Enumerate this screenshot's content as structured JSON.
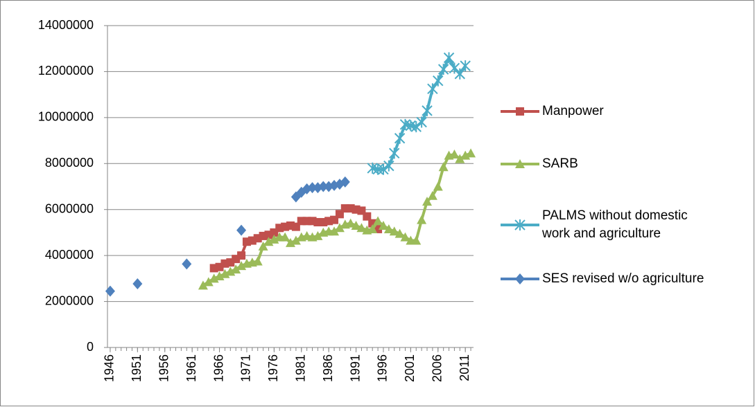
{
  "chart_data": {
    "type": "line",
    "x": [
      1946,
      1947,
      1948,
      1949,
      1950,
      1951,
      1952,
      1953,
      1954,
      1955,
      1956,
      1957,
      1958,
      1959,
      1960,
      1961,
      1962,
      1963,
      1964,
      1965,
      1966,
      1967,
      1968,
      1969,
      1970,
      1971,
      1972,
      1973,
      1974,
      1975,
      1976,
      1977,
      1978,
      1979,
      1980,
      1981,
      1982,
      1983,
      1984,
      1985,
      1986,
      1987,
      1988,
      1989,
      1990,
      1991,
      1992,
      1993,
      1994,
      1995,
      1996,
      1997,
      1998,
      1999,
      2000,
      2001,
      2002,
      2003,
      2004,
      2005,
      2006,
      2007,
      2008,
      2009,
      2010,
      2011,
      2012
    ],
    "xlim": [
      1945.5,
      2012.5
    ],
    "xticks": [
      1946,
      1951,
      1956,
      1961,
      1966,
      1971,
      1976,
      1981,
      1986,
      1991,
      1996,
      2001,
      2006,
      2011
    ],
    "ylim": [
      0,
      14000000
    ],
    "yticks": [
      0,
      2000000,
      4000000,
      6000000,
      8000000,
      10000000,
      12000000,
      14000000
    ],
    "grid": true,
    "series": [
      {
        "name": "Manpower",
        "color": "#c0504d",
        "marker": "square",
        "values": [
          null,
          null,
          null,
          null,
          null,
          null,
          null,
          null,
          null,
          null,
          null,
          null,
          null,
          null,
          null,
          null,
          null,
          null,
          null,
          3450000,
          3500000,
          3650000,
          3700000,
          3850000,
          4000000,
          4600000,
          4650000,
          4750000,
          4850000,
          4900000,
          5000000,
          5200000,
          5250000,
          5300000,
          5250000,
          5500000,
          5500000,
          5500000,
          5450000,
          5450000,
          5500000,
          5550000,
          5800000,
          6050000,
          6050000,
          6000000,
          5950000,
          5700000,
          5400000,
          5150000,
          null,
          null,
          null,
          null,
          null,
          null,
          null,
          null,
          null,
          null,
          null,
          null,
          null,
          null,
          null,
          null,
          null
        ]
      },
      {
        "name": "SARB",
        "color": "#9bbb59",
        "marker": "triangle",
        "values": [
          null,
          null,
          null,
          null,
          null,
          null,
          null,
          null,
          null,
          null,
          null,
          null,
          null,
          null,
          null,
          null,
          null,
          2700000,
          2850000,
          3000000,
          3100000,
          3200000,
          3300000,
          3400000,
          3550000,
          3650000,
          3700000,
          3750000,
          4400000,
          4600000,
          4700000,
          4800000,
          4800000,
          4550000,
          4650000,
          4800000,
          4850000,
          4800000,
          4850000,
          5000000,
          5050000,
          5050000,
          5200000,
          5350000,
          5400000,
          5300000,
          5200000,
          5100000,
          5150000,
          5500000,
          5300000,
          5150000,
          5050000,
          4950000,
          4800000,
          4650000,
          4650000,
          5550000,
          6350000,
          6600000,
          7000000,
          7850000,
          8350000,
          8400000,
          8200000,
          8350000,
          8450000
        ]
      },
      {
        "name": "PALMS without domestic work and agriculture",
        "color": "#4bacc6",
        "marker": "star",
        "values": [
          null,
          null,
          null,
          null,
          null,
          null,
          null,
          null,
          null,
          null,
          null,
          null,
          null,
          null,
          null,
          null,
          null,
          null,
          null,
          null,
          null,
          null,
          null,
          null,
          null,
          null,
          null,
          null,
          null,
          null,
          null,
          null,
          null,
          null,
          null,
          null,
          null,
          null,
          null,
          null,
          null,
          null,
          null,
          null,
          null,
          null,
          null,
          null,
          7800000,
          7750000,
          7750000,
          7900000,
          8450000,
          9100000,
          9700000,
          9650000,
          9600000,
          9800000,
          10300000,
          11250000,
          11600000,
          12100000,
          12600000,
          12150000,
          11900000,
          12250000,
          null
        ]
      },
      {
        "name": "SES revised w/o agriculture",
        "color": "#4f81bd",
        "marker": "diamond",
        "values": [
          2450000,
          null,
          null,
          null,
          null,
          2770000,
          null,
          null,
          null,
          null,
          null,
          null,
          null,
          null,
          3630000,
          null,
          null,
          null,
          null,
          null,
          null,
          null,
          null,
          null,
          5100000,
          null,
          null,
          null,
          null,
          null,
          null,
          null,
          null,
          null,
          6550000,
          6750000,
          6900000,
          6950000,
          6950000,
          7000000,
          7000000,
          7050000,
          7100000,
          7200000,
          null,
          null,
          null,
          null,
          null,
          null,
          null,
          null,
          null,
          null,
          null,
          null,
          null,
          null,
          null,
          null,
          null,
          null,
          null,
          null,
          null,
          null,
          null
        ]
      }
    ]
  }
}
